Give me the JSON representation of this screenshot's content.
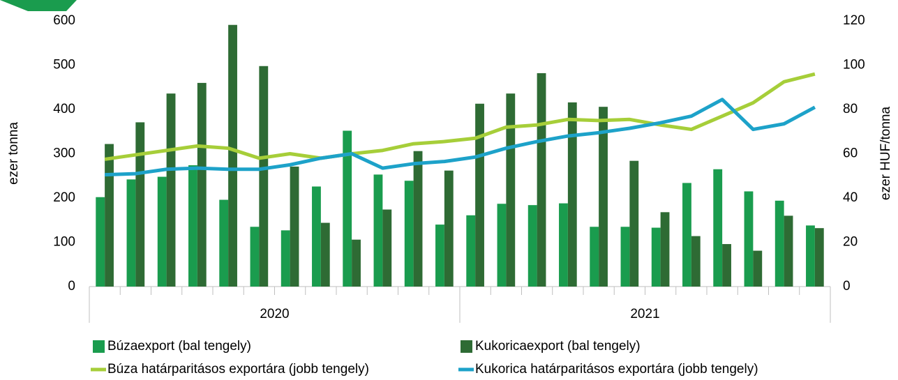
{
  "chart_data": {
    "type": "bar",
    "categories": [
      null,
      null,
      null,
      null,
      null,
      null,
      null,
      null,
      null,
      null,
      null,
      null,
      null,
      null,
      null,
      null,
      null,
      null,
      null,
      null,
      null,
      null,
      null,
      null
    ],
    "groups": [
      "2020",
      "2021"
    ],
    "ylabel": "ezer tonna",
    "y2label": "ezer HUF/tonna",
    "ylim": [
      0,
      600
    ],
    "yticks": [
      0,
      100,
      200,
      300,
      400,
      500,
      600
    ],
    "y2lim": [
      0,
      120
    ],
    "y2ticks": [
      0,
      20,
      40,
      60,
      80,
      100,
      120
    ],
    "grid": false,
    "legend": "bottom",
    "series": [
      {
        "name": "Búzaexport (bal tengely)",
        "type": "bar",
        "axis": "y",
        "color": "#1a9c4e",
        "values": [
          202,
          242,
          248,
          274,
          196,
          135,
          127,
          226,
          352,
          253,
          239,
          140,
          161,
          187,
          184,
          188,
          135,
          135,
          133,
          234,
          265,
          215,
          194,
          138
        ]
      },
      {
        "name": "Kukoricaexport (bal tengely)",
        "type": "bar",
        "axis": "y",
        "color": "#2e6b34",
        "values": [
          322,
          371,
          436,
          460,
          591,
          498,
          271,
          144,
          106,
          174,
          306,
          262,
          413,
          436,
          482,
          416,
          406,
          284,
          168,
          114,
          96,
          81,
          160,
          132
        ]
      },
      {
        "name": "Búza határparitásos exportára (jobb tengely)",
        "type": "line",
        "axis": "y2",
        "color": "#a6ce39",
        "values": [
          57.5,
          59.5,
          61.5,
          63.5,
          62.5,
          58,
          60,
          58,
          60,
          61.5,
          64.5,
          65.5,
          67,
          72,
          73,
          75.5,
          75,
          75.5,
          73,
          71,
          77,
          83,
          92.5,
          96
        ]
      },
      {
        "name": "Kukorica határparitásos exportára (jobb tengely)",
        "type": "line",
        "axis": "y2",
        "color": "#1da2c9",
        "values": [
          50.5,
          51,
          53,
          53.5,
          53,
          53,
          55,
          58,
          60,
          53.5,
          55.5,
          56.5,
          58.5,
          62.5,
          65.5,
          68,
          69.5,
          71.5,
          74,
          77,
          84.5,
          71,
          73.5,
          81
        ]
      }
    ]
  }
}
